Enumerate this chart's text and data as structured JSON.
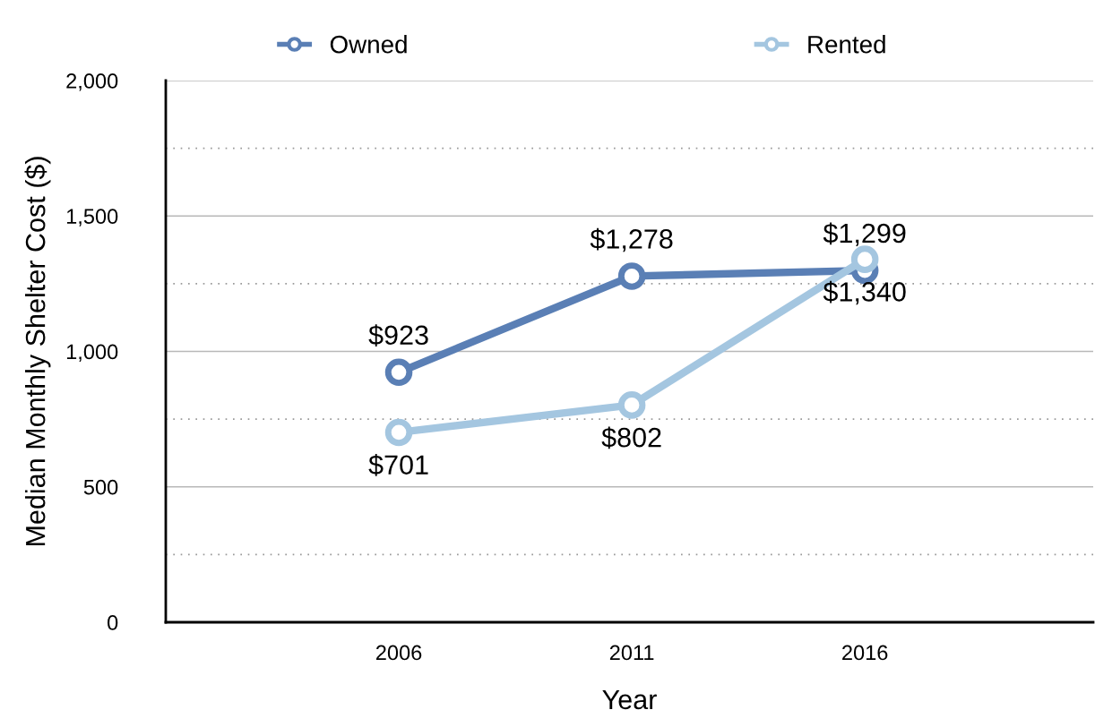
{
  "chart_data": {
    "type": "line",
    "xlabel": "Year",
    "ylabel": "Median Monthly Shelter Cost ($)",
    "categories": [
      "2006",
      "2011",
      "2016"
    ],
    "series": [
      {
        "name": "Owned",
        "color": "#5a7fb5",
        "values": [
          923,
          1278,
          1299
        ],
        "value_labels": [
          "$923",
          "$1,278",
          "$1,299"
        ]
      },
      {
        "name": "Rented",
        "color": "#a4c6e0",
        "values": [
          701,
          802,
          1340
        ],
        "value_labels": [
          "$701",
          "$802",
          "$1,340"
        ]
      }
    ],
    "ylim": [
      0,
      2000
    ],
    "yticks": [
      0,
      500,
      {
        "value": 1000,
        "label": "1,000"
      },
      {
        "value": 1500,
        "label": "1,500"
      },
      {
        "value": 2000,
        "label": "2,000"
      }
    ],
    "grid": "y",
    "legend": "top",
    "marker": "circle",
    "line_style": "solid"
  }
}
